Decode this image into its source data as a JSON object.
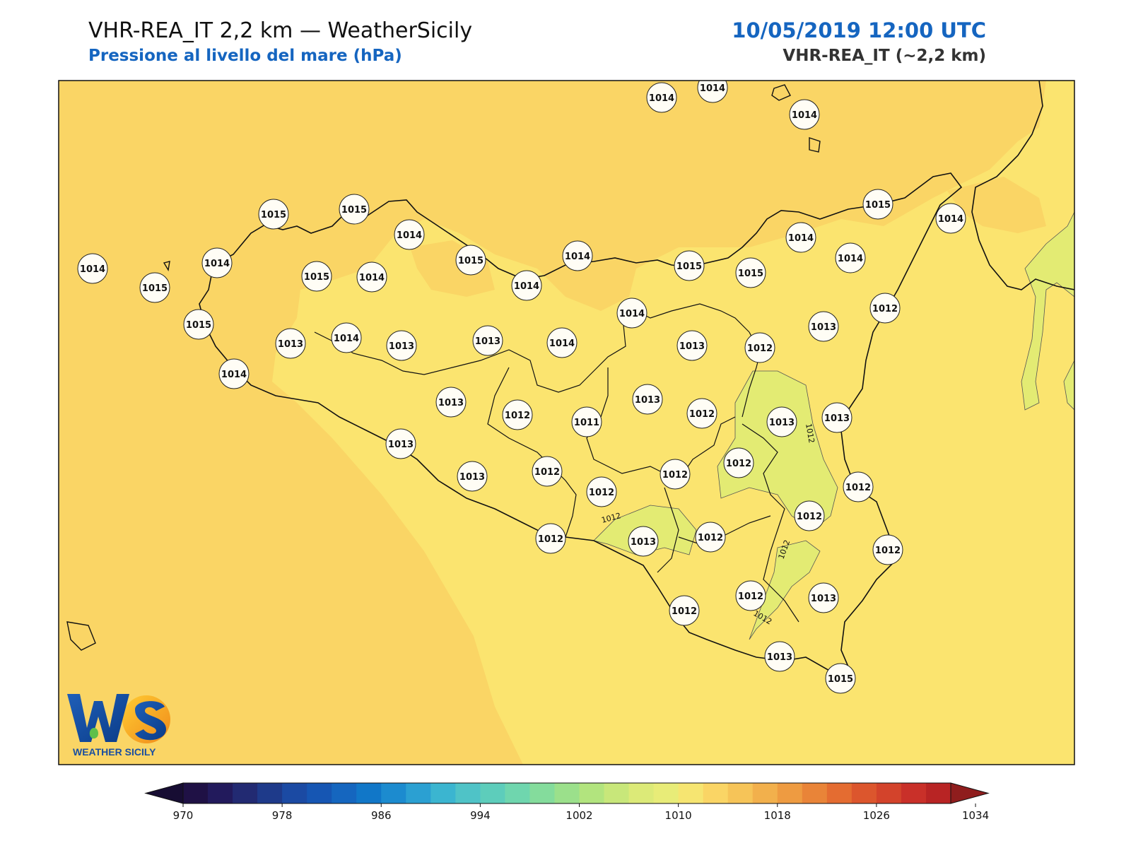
{
  "header": {
    "title": "VHR-REA_IT 2,2 km — WeatherSicily",
    "subtitle": "Pressione al livello del mare (hPa)",
    "datetime": "10/05/2019 12:00 UTC",
    "model": "VHR-REA_IT (~2,2 km)"
  },
  "map": {
    "field_colors": {
      "band_1014_1018": "#fad565",
      "band_1010_1014": "#fbe46f",
      "band_below_1012": "#e3eb73"
    },
    "contour_labels": [
      "1012",
      "1012",
      "1012",
      "1012"
    ],
    "stations": [
      {
        "value": "1014"
      },
      {
        "value": "1014"
      },
      {
        "value": "1014"
      },
      {
        "value": "1015"
      },
      {
        "value": "1015"
      },
      {
        "value": "1014"
      },
      {
        "value": "1014"
      },
      {
        "value": "1014"
      },
      {
        "value": "1015"
      },
      {
        "value": "1015"
      },
      {
        "value": "1015"
      },
      {
        "value": "1014"
      },
      {
        "value": "1014"
      },
      {
        "value": "1015"
      },
      {
        "value": "1014"
      },
      {
        "value": "1015"
      },
      {
        "value": "1015"
      },
      {
        "value": "1014"
      },
      {
        "value": "1013"
      },
      {
        "value": "1012"
      },
      {
        "value": "1015"
      },
      {
        "value": "1014"
      },
      {
        "value": "1014"
      },
      {
        "value": "1014"
      },
      {
        "value": "1014"
      },
      {
        "value": "1013"
      },
      {
        "value": "1014"
      },
      {
        "value": "1013"
      },
      {
        "value": "1013"
      },
      {
        "value": "1014"
      },
      {
        "value": "1013"
      },
      {
        "value": "1012"
      },
      {
        "value": "1013"
      },
      {
        "value": "1013"
      },
      {
        "value": "1012"
      },
      {
        "value": "1011"
      },
      {
        "value": "1012"
      },
      {
        "value": "1013"
      },
      {
        "value": "1013"
      },
      {
        "value": "1012"
      },
      {
        "value": "1012"
      },
      {
        "value": "1012"
      },
      {
        "value": "1012"
      },
      {
        "value": "1012"
      },
      {
        "value": "1012"
      },
      {
        "value": "1013"
      },
      {
        "value": "1012"
      },
      {
        "value": "1012"
      },
      {
        "value": "1012"
      },
      {
        "value": "1013"
      },
      {
        "value": "1012"
      },
      {
        "value": "1012"
      },
      {
        "value": "1013"
      },
      {
        "value": "1013"
      },
      {
        "value": "1013"
      },
      {
        "value": "1015"
      }
    ]
  },
  "colorbar": {
    "ticks": [
      "970",
      "978",
      "986",
      "994",
      "1002",
      "1010",
      "1018",
      "1026",
      "1034"
    ],
    "colors": [
      "#1f1145",
      "#221a5c",
      "#222a72",
      "#1e3a8a",
      "#1b4aa3",
      "#1656b3",
      "#1566bf",
      "#1177c8",
      "#1c8bcf",
      "#2ba0d2",
      "#3bb5d0",
      "#4fc3c7",
      "#5dcdbb",
      "#6fd6ae",
      "#84dc9c",
      "#9be08b",
      "#b2e47e",
      "#c8e77a",
      "#dcea78",
      "#e8ec78",
      "#f6e571",
      "#fad565",
      "#f6c458",
      "#f2b04c",
      "#ee9b41",
      "#e98438",
      "#e46c31",
      "#dc562d",
      "#d3432b",
      "#c93029",
      "#b82424"
    ],
    "under_color": "#170d33",
    "over_color": "#8f1d1d"
  },
  "logo": {
    "text": "WEATHER SICILY",
    "mark": "WS"
  }
}
